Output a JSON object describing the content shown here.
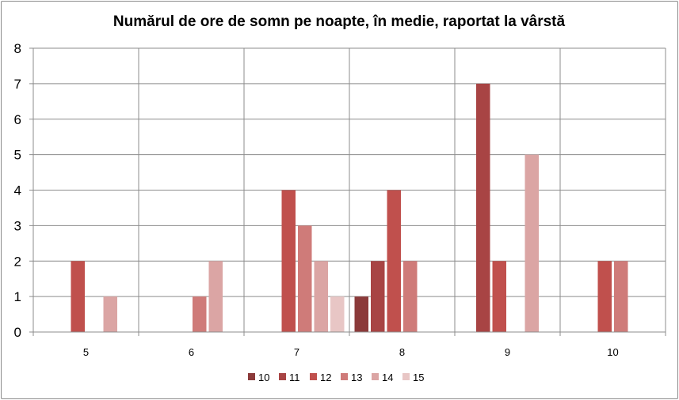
{
  "chart_data": {
    "type": "bar",
    "title": "Numărul de ore de somn pe noapte,  în medie, raportat la vârstă",
    "xlabel": "",
    "ylabel": "",
    "categories": [
      "5",
      "6",
      "7",
      "8",
      "9",
      "10"
    ],
    "ylim": [
      0,
      8
    ],
    "yticks": [
      0,
      1,
      2,
      3,
      4,
      5,
      6,
      7,
      8
    ],
    "grid": true,
    "legend_position": "bottom",
    "series": [
      {
        "name": "10",
        "color": "#8b3a3a",
        "values": [
          0,
          0,
          0,
          1,
          0,
          0
        ]
      },
      {
        "name": "11",
        "color": "#a84444",
        "values": [
          0,
          0,
          0,
          2,
          7,
          0
        ]
      },
      {
        "name": "12",
        "color": "#c0504d",
        "values": [
          2,
          0,
          4,
          4,
          2,
          2
        ]
      },
      {
        "name": "13",
        "color": "#cf7b79",
        "values": [
          0,
          1,
          3,
          2,
          0,
          2
        ]
      },
      {
        "name": "14",
        "color": "#dba5a4",
        "values": [
          1,
          2,
          2,
          0,
          5,
          0
        ]
      },
      {
        "name": "15",
        "color": "#e8c6c5",
        "values": [
          0,
          0,
          1,
          0,
          0,
          0
        ]
      }
    ]
  }
}
